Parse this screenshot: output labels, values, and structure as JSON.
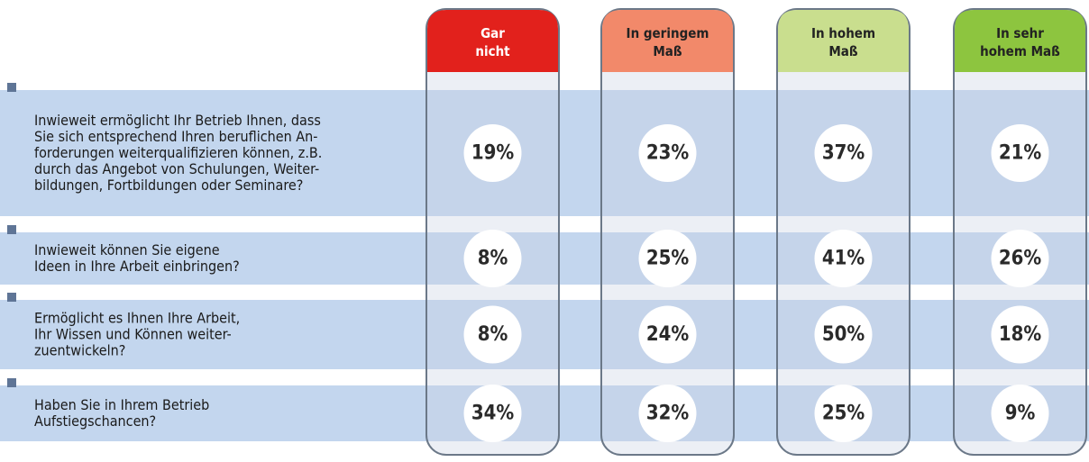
{
  "table": {
    "columns": [
      {
        "label": [
          "Gar",
          "nicht"
        ],
        "color": "#e2211c",
        "text_color": "#ffffff"
      },
      {
        "label": [
          "In geringem",
          "Maß"
        ],
        "color": "#f2896a",
        "text_color": "#222222"
      },
      {
        "label": [
          "In hohem",
          "Maß"
        ],
        "color": "#c9de8e",
        "text_color": "#222222"
      },
      {
        "label": [
          "In sehr",
          "hohem Maß"
        ],
        "color": "#8dc53f",
        "text_color": "#222222"
      }
    ],
    "rows": [
      {
        "question": [
          "Inwieweit ermöglicht Ihr Betrieb Ihnen, dass",
          "Sie sich entsprechend Ihren beruflichen An-",
          "forderungen weiterqualifizieren können, z.B.",
          "durch das Angebot von Schulungen, Weiter-",
          "bildungen, Fortbildungen oder Seminare?"
        ],
        "values": [
          "19%",
          "23%",
          "37%",
          "21%"
        ]
      },
      {
        "question": [
          "Inwieweit können Sie eigene",
          "Ideen in Ihre Arbeit einbringen?"
        ],
        "values": [
          "8%",
          "25%",
          "41%",
          "26%"
        ]
      },
      {
        "question": [
          "Ermöglicht es Ihnen Ihre Arbeit,",
          "Ihr Wissen und Können weiter-",
          "zuentwickeln?"
        ],
        "values": [
          "8%",
          "24%",
          "50%",
          "18%"
        ]
      },
      {
        "question": [
          "Haben Sie in Ihrem Betrieb",
          "Aufstiegschancen?"
        ],
        "values": [
          "34%",
          "32%",
          "25%",
          "9%"
        ]
      }
    ]
  }
}
